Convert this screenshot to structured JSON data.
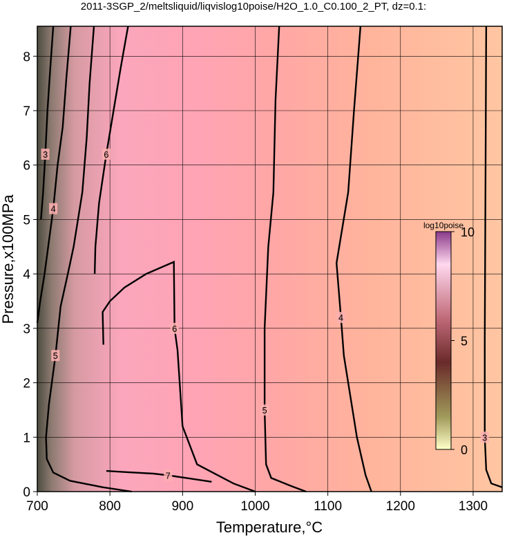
{
  "chart_data": {
    "type": "contour",
    "title": "2011-3SGP_2/meltsliquid/liqvislog10poise/H2O_1.0_C0.100_2_PT, dz=0.1:",
    "x_label": "Temperature,°C",
    "y_label": "Pressure,x100MPa",
    "xlim": [
      700,
      1340
    ],
    "xticks": [
      700,
      800,
      900,
      1000,
      1100,
      1200,
      1300
    ],
    "ylim": [
      0,
      8.55
    ],
    "yticks": [
      0,
      1,
      2,
      3,
      4,
      5,
      6,
      7,
      8
    ],
    "grid": true,
    "contours": [
      {
        "label": "3",
        "x": [
          1318,
          1317,
          1316,
          1316,
          1318,
          1325,
          1340
        ],
        "y": [
          8.55,
          5.5,
          2.8,
          1.0,
          0.4,
          0.15,
          0.08
        ]
      },
      {
        "label": "4",
        "x": [
          1145,
          1136,
          1128,
          1112,
          1118,
          1122,
          1140,
          1152,
          1160
        ],
        "y": [
          8.55,
          7,
          5.5,
          4.2,
          3.2,
          2.5,
          1.0,
          0.3,
          0
        ]
      },
      {
        "label": "5",
        "x": [
          1033,
          1028,
          1025,
          1018,
          1013,
          1013,
          1015,
          1022,
          1050,
          1070
        ],
        "y": [
          8.55,
          7.2,
          5.5,
          4.5,
          3.0,
          1.5,
          0.5,
          0.25,
          0.1,
          0
        ]
      },
      {
        "label": "6",
        "x": [
          791,
          790,
          800,
          820,
          850,
          888,
          889,
          893,
          900,
          920,
          970,
          1000
        ],
        "y": [
          2.7,
          3.3,
          3.5,
          3.75,
          4.0,
          4.22,
          3.0,
          2.6,
          1.2,
          0.5,
          0.15,
          0
        ]
      },
      {
        "label": "7",
        "x": [
          795,
          820,
          860,
          880,
          910,
          940
        ],
        "y": [
          0.38,
          0.36,
          0.33,
          0.3,
          0.24,
          0.18
        ]
      },
      {
        "label": "5",
        "x": [
          778,
          772,
          768,
          762,
          750,
          742,
          732,
          725,
          716,
          712,
          713,
          722,
          745,
          790,
          830
        ],
        "y": [
          8.55,
          7.5,
          6.5,
          5.5,
          4.5,
          4.0,
          3.4,
          2.5,
          1.6,
          1.0,
          0.6,
          0.35,
          0.2,
          0.08,
          0
        ]
      },
      {
        "label": "4",
        "x": [
          746,
          740,
          735,
          728,
          722,
          716,
          710,
          704,
          700
        ],
        "y": [
          8.55,
          7.6,
          6.7,
          6.0,
          5.2,
          4.6,
          4.0,
          3.5,
          3.1
        ]
      },
      {
        "label": "6",
        "x": [
          825,
          815,
          805,
          795,
          785,
          780,
          779
        ],
        "y": [
          8.55,
          7.8,
          7.0,
          6.2,
          5.3,
          4.5,
          4.0
        ]
      },
      {
        "label": "3",
        "x": [
          722,
          718,
          714,
          711,
          708,
          705
        ],
        "y": [
          8.55,
          7.8,
          7.0,
          6.2,
          5.5,
          5.0
        ]
      }
    ],
    "colorbar": {
      "label": "log10poise",
      "lim": [
        0,
        10
      ],
      "ticks": [
        0,
        5,
        10
      ]
    }
  }
}
